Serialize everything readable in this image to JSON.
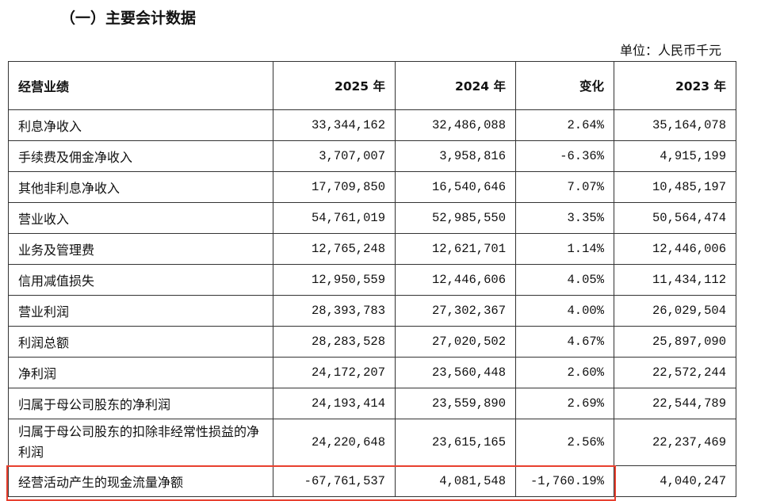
{
  "title": "（一）主要会计数据",
  "unit": "单位：人民币千元",
  "table": {
    "headers": [
      "经营业绩",
      "2025 年",
      "2024 年",
      "变化",
      "2023 年"
    ],
    "rows": [
      [
        "利息净收入",
        "33,344,162",
        "32,486,088",
        "2.64%",
        "35,164,078"
      ],
      [
        "手续费及佣金净收入",
        "3,707,007",
        "3,958,816",
        "-6.36%",
        "4,915,199"
      ],
      [
        "其他非利息净收入",
        "17,709,850",
        "16,540,646",
        "7.07%",
        "10,485,197"
      ],
      [
        "营业收入",
        "54,761,019",
        "52,985,550",
        "3.35%",
        "50,564,474"
      ],
      [
        "业务及管理费",
        "12,765,248",
        "12,621,701",
        "1.14%",
        "12,446,006"
      ],
      [
        "信用减值损失",
        "12,950,559",
        "12,446,606",
        "4.05%",
        "11,434,112"
      ],
      [
        "营业利润",
        "28,393,783",
        "27,302,367",
        "4.00%",
        "26,029,504"
      ],
      [
        "利润总额",
        "28,283,528",
        "27,020,502",
        "4.67%",
        "25,897,090"
      ],
      [
        "净利润",
        "24,172,207",
        "23,560,448",
        "2.60%",
        "22,572,244"
      ],
      [
        "归属于母公司股东的净利润",
        "24,193,414",
        "23,559,890",
        "2.69%",
        "22,544,789"
      ],
      [
        "归属于母公司股东的扣除非经常性损益的净利润",
        "24,220,648",
        "23,615,165",
        "2.56%",
        "22,237,469"
      ],
      [
        "经营活动产生的现金流量净额",
        "-67,761,537",
        "4,081,548",
        "-1,760.19%",
        "4,040,247"
      ]
    ]
  },
  "highlight_color": "#e8402f"
}
